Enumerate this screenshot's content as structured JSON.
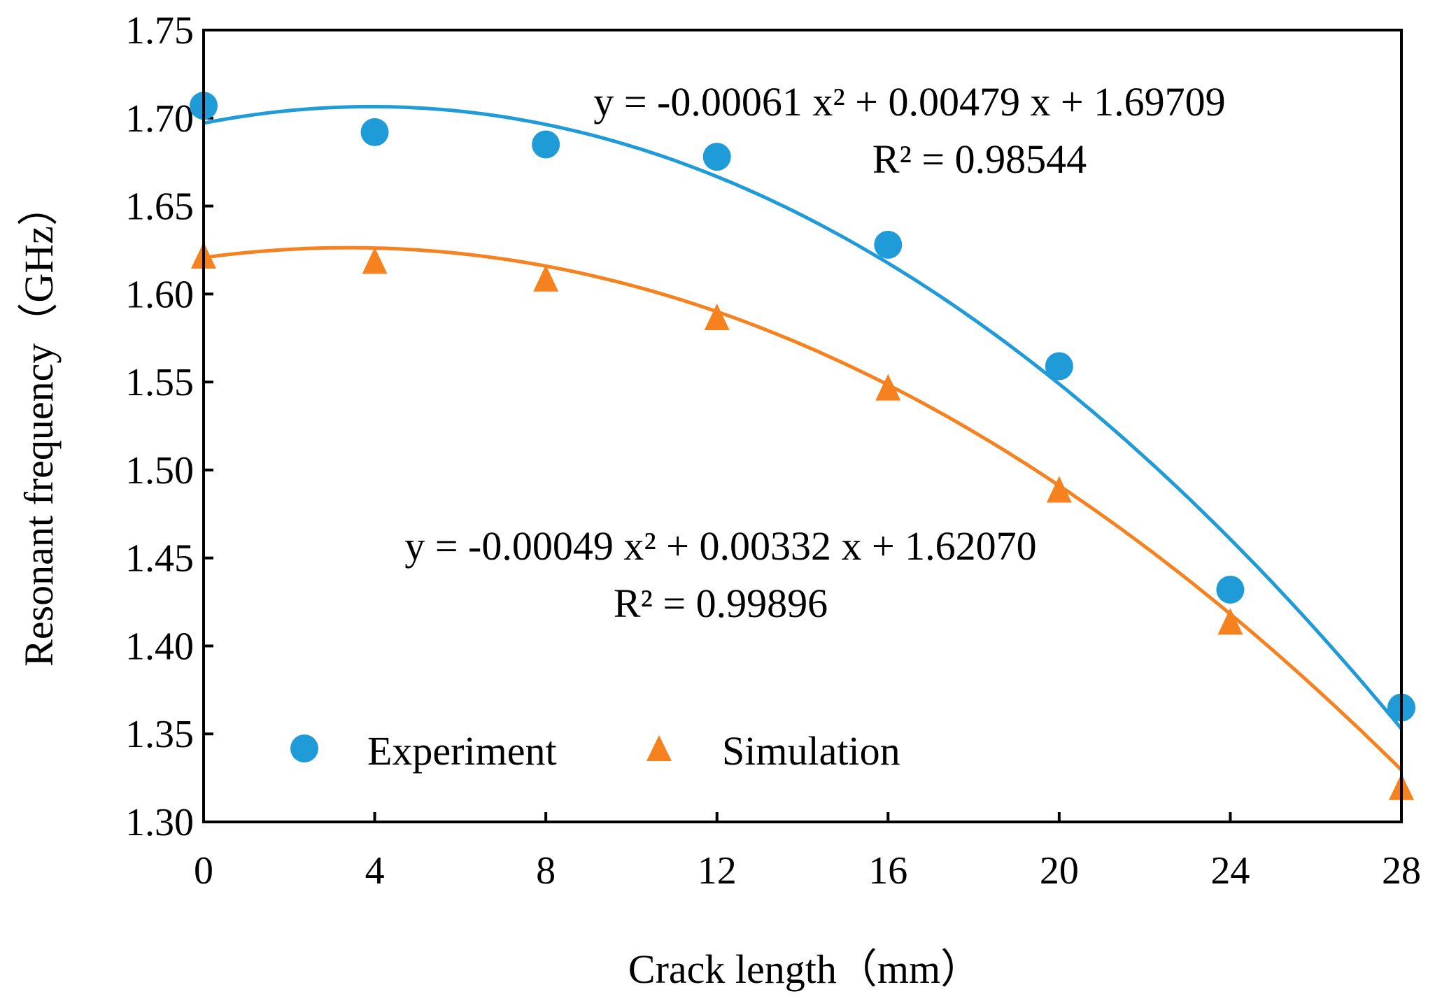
{
  "chart_data": {
    "type": "scatter",
    "title": "",
    "xlabel": "Crack length（mm）",
    "ylabel": "Resonant frequency（GHz）",
    "xlim": [
      0,
      28
    ],
    "ylim": [
      1.3,
      1.75
    ],
    "xticks": [
      0,
      4,
      8,
      12,
      16,
      20,
      24,
      28
    ],
    "xtick_labels": [
      "0",
      "4",
      "8",
      "12",
      "16",
      "20",
      "24",
      "28"
    ],
    "yticks": [
      1.3,
      1.35,
      1.4,
      1.45,
      1.5,
      1.55,
      1.6,
      1.65,
      1.7,
      1.75
    ],
    "ytick_labels": [
      "1.30",
      "1.35",
      "1.40",
      "1.45",
      "1.50",
      "1.55",
      "1.60",
      "1.65",
      "1.70",
      "1.75"
    ],
    "grid": false,
    "legend_position": "bottom-left",
    "series": [
      {
        "name": "Experiment",
        "marker": "circle",
        "color": "#1f9bd7",
        "x": [
          0,
          4,
          8,
          12,
          16,
          20,
          24,
          28
        ],
        "y": [
          1.707,
          1.692,
          1.685,
          1.678,
          1.628,
          1.559,
          1.432,
          1.365
        ],
        "fit": {
          "a": -0.00061,
          "b": 0.00479,
          "c": 1.69709,
          "equation": "y = -0.00061 x² + 0.00479 x + 1.69709",
          "r_squared": "R²  = 0.98544"
        }
      },
      {
        "name": "Simulation",
        "marker": "triangle",
        "color": "#f5821f",
        "x": [
          0,
          4,
          8,
          12,
          16,
          20,
          24,
          28
        ],
        "y": [
          1.622,
          1.619,
          1.609,
          1.587,
          1.547,
          1.489,
          1.414,
          1.32
        ],
        "fit": {
          "a": -0.00049,
          "b": 0.00332,
          "c": 1.6207,
          "equation": "y = -0.00049 x² + 0.00332 x + 1.62070",
          "r_squared": "R² = 0.99896"
        }
      }
    ]
  }
}
